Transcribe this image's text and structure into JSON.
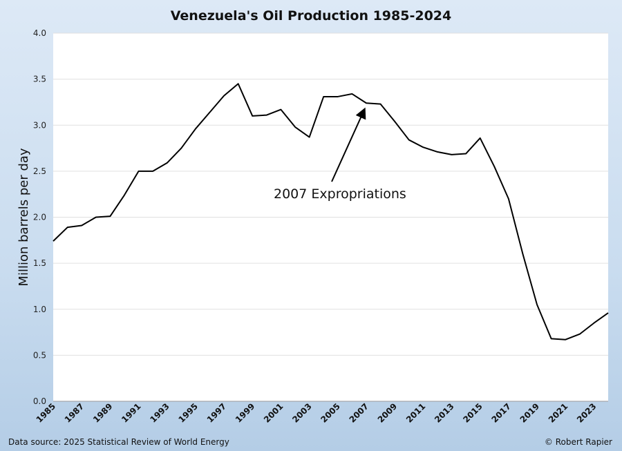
{
  "chart_data": {
    "type": "line",
    "title": "Venezuela's Oil Production 1985-2024",
    "xlabel": "",
    "ylabel": "Million barrels per day",
    "ylim": [
      0,
      4.0
    ],
    "yticks": [
      "0.0",
      "0.5",
      "1.0",
      "1.5",
      "2.0",
      "2.5",
      "3.0",
      "3.5",
      "4.0"
    ],
    "xticks": [
      "1985",
      "1987",
      "1989",
      "1991",
      "1993",
      "1995",
      "1997",
      "1999",
      "2001",
      "2003",
      "2005",
      "2007",
      "2009",
      "2011",
      "2013",
      "2015",
      "2017",
      "2019",
      "2021",
      "2023"
    ],
    "grid": true,
    "line_color": "#000000",
    "x": [
      1985,
      1986,
      1987,
      1988,
      1989,
      1990,
      1991,
      1992,
      1993,
      1994,
      1995,
      1996,
      1997,
      1998,
      1999,
      2000,
      2001,
      2002,
      2003,
      2004,
      2005,
      2006,
      2007,
      2008,
      2009,
      2010,
      2011,
      2012,
      2013,
      2014,
      2015,
      2016,
      2017,
      2018,
      2019,
      2020,
      2021,
      2022,
      2023,
      2024
    ],
    "values": [
      1.74,
      1.89,
      1.91,
      2.0,
      2.01,
      2.24,
      2.5,
      2.5,
      2.59,
      2.75,
      2.96,
      3.14,
      3.32,
      3.45,
      3.1,
      3.11,
      3.17,
      2.98,
      2.87,
      3.31,
      3.31,
      3.34,
      3.24,
      3.23,
      3.04,
      2.84,
      2.76,
      2.71,
      2.68,
      2.69,
      2.86,
      2.55,
      2.2,
      1.6,
      1.05,
      0.68,
      0.67,
      0.73,
      0.85,
      0.96
    ],
    "annotation": {
      "text": "2007 Expropriations",
      "points_to_year": 2007
    }
  },
  "footer": {
    "source": "Data source: 2025 Statistical Review of World Energy",
    "credit": "© Robert Rapier"
  }
}
